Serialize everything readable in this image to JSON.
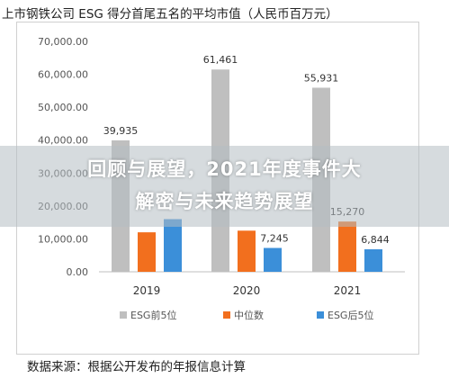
{
  "header": {
    "title": "上市钢铁公司 ESG 得分首尾五名的平均市值（人民币百万元）"
  },
  "source": "数据来源：根据公开发布的年报信息计算",
  "overlay": {
    "line1": "回顾与展望，2021年度事件大",
    "line2": "解密与未来趋势展望"
  },
  "chart_data": {
    "type": "bar",
    "categories": [
      "2019",
      "2020",
      "2021"
    ],
    "series": [
      {
        "name": "ESG前5位",
        "color": "#bfbfbf",
        "values": [
          39935,
          61461,
          55931
        ]
      },
      {
        "name": "中位数",
        "color": "#f26f1e",
        "values": [
          12000,
          12500,
          15270
        ]
      },
      {
        "name": "ESG后5位",
        "color": "#3b8fd9",
        "values": [
          16000,
          7245,
          6844
        ]
      }
    ],
    "data_labels": [
      [
        "39,935",
        "",
        ""
      ],
      [
        "61,461",
        "",
        "7,245"
      ],
      [
        "55,931",
        "15,270",
        "6,844"
      ]
    ],
    "yticks": [
      "0.00",
      "10,000.00",
      "20,000.00",
      "30,000.00",
      "40,000.00",
      "50,000.00",
      "60,000.00",
      "70,000.00"
    ],
    "ylim": [
      0,
      70000
    ],
    "legend_position": "bottom",
    "grid": false
  }
}
